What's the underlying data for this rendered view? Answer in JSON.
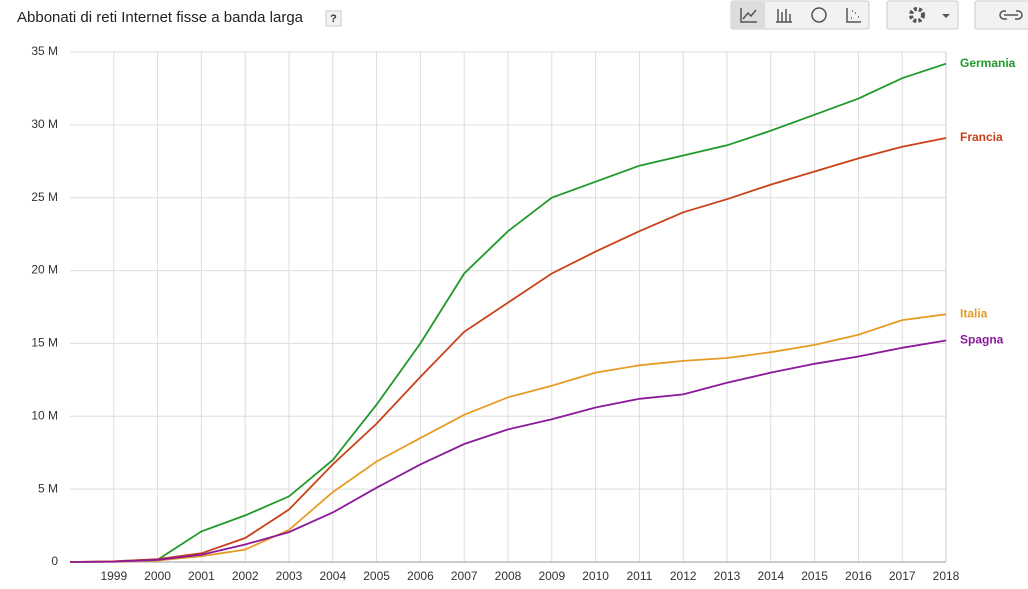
{
  "chart_data": {
    "type": "line",
    "title": "Abbonati di reti Internet fisse a banda larga",
    "help": "?",
    "x": [
      1998,
      1999,
      2000,
      2001,
      2002,
      2003,
      2004,
      2005,
      2006,
      2007,
      2008,
      2009,
      2010,
      2011,
      2012,
      2013,
      2014,
      2015,
      2016,
      2017,
      2018
    ],
    "xlim": [
      1998,
      2018
    ],
    "xticks": [
      1999,
      2000,
      2001,
      2002,
      2003,
      2004,
      2005,
      2006,
      2007,
      2008,
      2009,
      2010,
      2011,
      2012,
      2013,
      2014,
      2015,
      2016,
      2017,
      2018
    ],
    "ylim": [
      0,
      35000000
    ],
    "yticks": [
      {
        "value": 0,
        "label": "0"
      },
      {
        "value": 5000000,
        "label": "5 M"
      },
      {
        "value": 10000000,
        "label": "10 M"
      },
      {
        "value": 15000000,
        "label": "15 M"
      },
      {
        "value": 20000000,
        "label": "20 M"
      },
      {
        "value": 25000000,
        "label": "25 M"
      },
      {
        "value": 30000000,
        "label": "30 M"
      },
      {
        "value": 35000000,
        "label": "35 M"
      }
    ],
    "grid": true,
    "series": [
      {
        "name": "Germania",
        "color": "#1f9a2a",
        "values": [
          null,
          null,
          150000,
          2100000,
          3200000,
          4500000,
          7000000,
          10800000,
          15000000,
          19800000,
          22700000,
          25000000,
          26100000,
          27200000,
          27900000,
          28600000,
          29600000,
          30700000,
          31800000,
          33200000,
          34200000
        ]
      },
      {
        "name": "Francia",
        "color": "#c9411a",
        "values": [
          0,
          50000,
          200000,
          600000,
          1650000,
          3600000,
          6700000,
          9500000,
          12700000,
          15800000,
          17800000,
          19800000,
          21300000,
          22700000,
          24000000,
          24900000,
          25900000,
          26800000,
          27700000,
          28500000,
          29100000
        ]
      },
      {
        "name": "Italia",
        "color": "#e69c24",
        "values": [
          0,
          20000,
          100000,
          400000,
          850000,
          2200000,
          4800000,
          6900000,
          8500000,
          10100000,
          11300000,
          12100000,
          13000000,
          13500000,
          13800000,
          14000000,
          14400000,
          14900000,
          15600000,
          16600000,
          17000000
        ]
      },
      {
        "name": "Spagna",
        "color": "#8b1a9a",
        "values": [
          0,
          20000,
          150000,
          500000,
          1200000,
          2050000,
          3400000,
          5100000,
          6700000,
          8100000,
          9100000,
          9800000,
          10600000,
          11200000,
          11500000,
          12300000,
          13000000,
          13600000,
          14100000,
          14700000,
          15200000
        ]
      }
    ]
  }
}
